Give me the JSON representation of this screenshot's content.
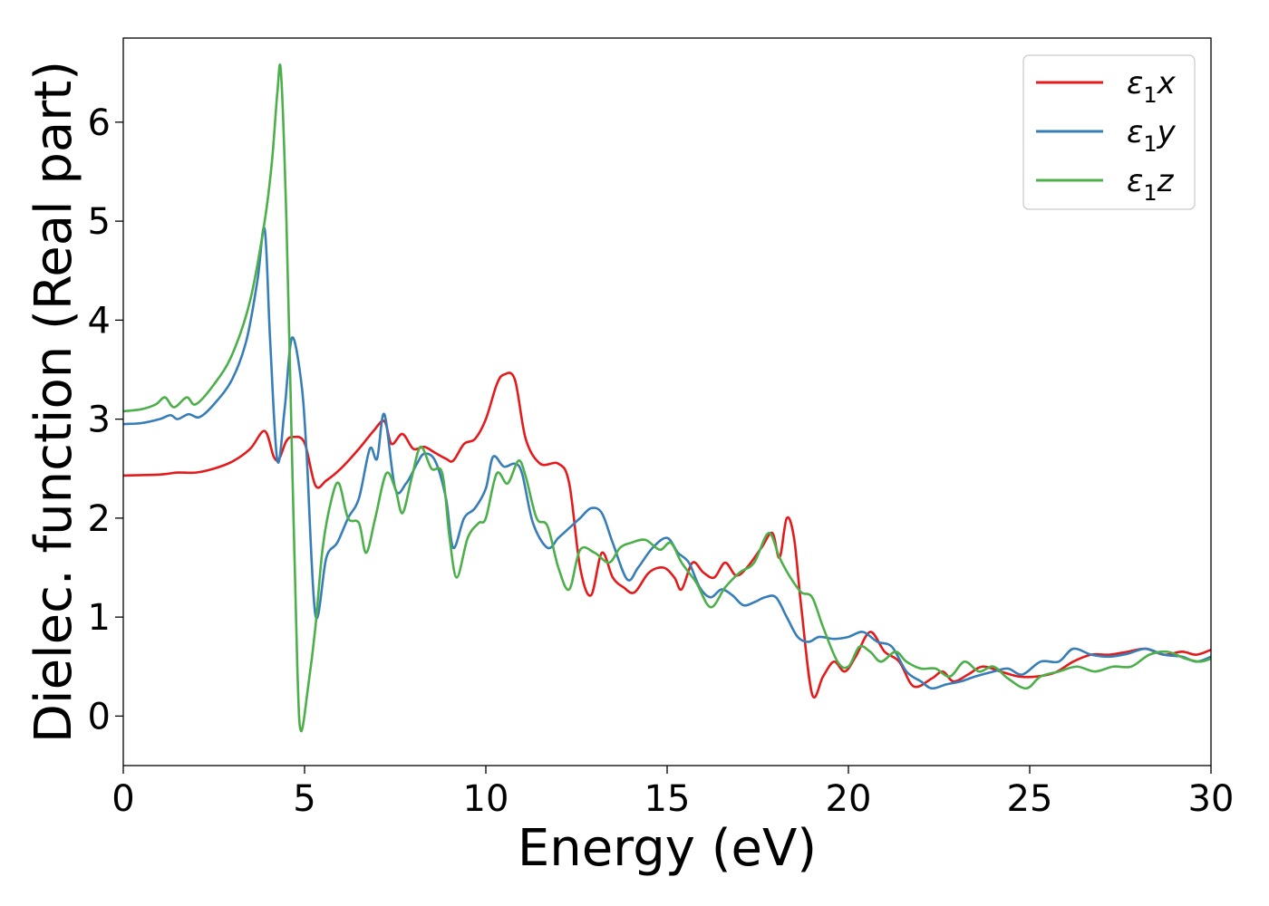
{
  "chart_data": {
    "type": "line",
    "title": "",
    "xlabel": "Energy (eV)",
    "ylabel": "Dielec. function (Real part)",
    "xlim": [
      0,
      30
    ],
    "ylim": [
      -0.5,
      6.85
    ],
    "xticks": [
      "0",
      "5",
      "10",
      "15",
      "20",
      "25",
      "30"
    ],
    "yticks": [
      "0",
      "1",
      "2",
      "3",
      "4",
      "5",
      "6"
    ],
    "grid": false,
    "legend_position": "top-right",
    "series": [
      {
        "name": "ε₁x",
        "legend_main": "ε",
        "legend_sub": "1",
        "legend_tail": "x",
        "color": "#e41a1c",
        "points": [
          [
            0,
            2.43
          ],
          [
            1,
            2.44
          ],
          [
            1.5,
            2.46
          ],
          [
            2,
            2.46
          ],
          [
            2.5,
            2.5
          ],
          [
            3,
            2.57
          ],
          [
            3.5,
            2.7
          ],
          [
            3.9,
            2.88
          ],
          [
            4.15,
            2.62
          ],
          [
            4.3,
            2.6
          ],
          [
            4.5,
            2.78
          ],
          [
            4.7,
            2.82
          ],
          [
            5.0,
            2.76
          ],
          [
            5.3,
            2.33
          ],
          [
            5.6,
            2.38
          ],
          [
            6.0,
            2.5
          ],
          [
            6.5,
            2.7
          ],
          [
            6.9,
            2.88
          ],
          [
            7.2,
            2.98
          ],
          [
            7.4,
            2.75
          ],
          [
            7.7,
            2.85
          ],
          [
            8.0,
            2.7
          ],
          [
            8.3,
            2.72
          ],
          [
            8.6,
            2.66
          ],
          [
            8.9,
            2.6
          ],
          [
            9.1,
            2.58
          ],
          [
            9.4,
            2.75
          ],
          [
            9.7,
            2.8
          ],
          [
            10.0,
            3.0
          ],
          [
            10.3,
            3.35
          ],
          [
            10.5,
            3.45
          ],
          [
            10.8,
            3.4
          ],
          [
            11.1,
            2.8
          ],
          [
            11.5,
            2.55
          ],
          [
            12.0,
            2.55
          ],
          [
            12.3,
            2.35
          ],
          [
            12.6,
            1.5
          ],
          [
            12.9,
            1.22
          ],
          [
            13.2,
            1.65
          ],
          [
            13.5,
            1.4
          ],
          [
            13.8,
            1.3
          ],
          [
            14.1,
            1.25
          ],
          [
            14.5,
            1.45
          ],
          [
            14.9,
            1.5
          ],
          [
            15.2,
            1.4
          ],
          [
            15.4,
            1.28
          ],
          [
            15.7,
            1.55
          ],
          [
            16.0,
            1.45
          ],
          [
            16.3,
            1.4
          ],
          [
            16.6,
            1.55
          ],
          [
            16.9,
            1.42
          ],
          [
            17.2,
            1.5
          ],
          [
            17.6,
            1.7
          ],
          [
            17.9,
            1.85
          ],
          [
            18.1,
            1.6
          ],
          [
            18.3,
            2.0
          ],
          [
            18.5,
            1.8
          ],
          [
            18.7,
            1.1
          ],
          [
            19.0,
            0.22
          ],
          [
            19.3,
            0.4
          ],
          [
            19.6,
            0.55
          ],
          [
            19.9,
            0.45
          ],
          [
            20.2,
            0.6
          ],
          [
            20.6,
            0.85
          ],
          [
            21.0,
            0.65
          ],
          [
            21.4,
            0.55
          ],
          [
            21.8,
            0.3
          ],
          [
            22.3,
            0.38
          ],
          [
            22.6,
            0.45
          ],
          [
            22.9,
            0.35
          ],
          [
            23.3,
            0.42
          ],
          [
            23.7,
            0.5
          ],
          [
            24.2,
            0.45
          ],
          [
            24.7,
            0.4
          ],
          [
            25.2,
            0.4
          ],
          [
            25.7,
            0.44
          ],
          [
            26.2,
            0.55
          ],
          [
            26.7,
            0.62
          ],
          [
            27.2,
            0.62
          ],
          [
            27.7,
            0.65
          ],
          [
            28.2,
            0.68
          ],
          [
            28.7,
            0.62
          ],
          [
            29.2,
            0.65
          ],
          [
            29.6,
            0.62
          ],
          [
            30.0,
            0.67
          ]
        ]
      },
      {
        "name": "ε₁y",
        "legend_main": "ε",
        "legend_sub": "1",
        "legend_tail": "y",
        "color": "#377eb8",
        "points": [
          [
            0,
            2.95
          ],
          [
            0.5,
            2.96
          ],
          [
            1.0,
            3.0
          ],
          [
            1.3,
            3.04
          ],
          [
            1.5,
            3.0
          ],
          [
            1.8,
            3.05
          ],
          [
            2.1,
            3.02
          ],
          [
            2.5,
            3.15
          ],
          [
            3.0,
            3.4
          ],
          [
            3.4,
            3.8
          ],
          [
            3.7,
            4.4
          ],
          [
            3.9,
            4.92
          ],
          [
            4.05,
            3.8
          ],
          [
            4.25,
            2.58
          ],
          [
            4.45,
            3.1
          ],
          [
            4.65,
            3.82
          ],
          [
            4.9,
            3.4
          ],
          [
            5.05,
            2.7
          ],
          [
            5.3,
            1.02
          ],
          [
            5.6,
            1.6
          ],
          [
            5.9,
            1.75
          ],
          [
            6.2,
            2.0
          ],
          [
            6.5,
            2.2
          ],
          [
            6.8,
            2.7
          ],
          [
            7.0,
            2.6
          ],
          [
            7.2,
            3.05
          ],
          [
            7.5,
            2.3
          ],
          [
            7.8,
            2.35
          ],
          [
            8.1,
            2.55
          ],
          [
            8.3,
            2.65
          ],
          [
            8.6,
            2.58
          ],
          [
            8.9,
            2.2
          ],
          [
            9.1,
            1.7
          ],
          [
            9.4,
            2.0
          ],
          [
            9.7,
            2.1
          ],
          [
            10.0,
            2.3
          ],
          [
            10.2,
            2.62
          ],
          [
            10.5,
            2.52
          ],
          [
            10.8,
            2.55
          ],
          [
            11.0,
            2.45
          ],
          [
            11.3,
            1.95
          ],
          [
            11.7,
            1.7
          ],
          [
            12.0,
            1.8
          ],
          [
            12.3,
            1.9
          ],
          [
            12.6,
            2.0
          ],
          [
            12.9,
            2.1
          ],
          [
            13.2,
            2.05
          ],
          [
            13.5,
            1.75
          ],
          [
            13.9,
            1.38
          ],
          [
            14.2,
            1.5
          ],
          [
            14.6,
            1.7
          ],
          [
            15.0,
            1.8
          ],
          [
            15.3,
            1.65
          ],
          [
            15.6,
            1.55
          ],
          [
            15.9,
            1.3
          ],
          [
            16.2,
            1.2
          ],
          [
            16.5,
            1.28
          ],
          [
            16.8,
            1.22
          ],
          [
            17.1,
            1.12
          ],
          [
            17.4,
            1.15
          ],
          [
            17.7,
            1.2
          ],
          [
            18.0,
            1.2
          ],
          [
            18.3,
            1.0
          ],
          [
            18.6,
            0.8
          ],
          [
            18.9,
            0.75
          ],
          [
            19.2,
            0.8
          ],
          [
            19.6,
            0.78
          ],
          [
            20.0,
            0.8
          ],
          [
            20.4,
            0.85
          ],
          [
            20.8,
            0.75
          ],
          [
            21.2,
            0.7
          ],
          [
            21.6,
            0.45
          ],
          [
            22.0,
            0.35
          ],
          [
            22.3,
            0.28
          ],
          [
            22.7,
            0.32
          ],
          [
            23.1,
            0.35
          ],
          [
            23.5,
            0.4
          ],
          [
            24.0,
            0.45
          ],
          [
            24.4,
            0.48
          ],
          [
            24.8,
            0.42
          ],
          [
            25.3,
            0.55
          ],
          [
            25.8,
            0.55
          ],
          [
            26.2,
            0.68
          ],
          [
            26.7,
            0.62
          ],
          [
            27.2,
            0.6
          ],
          [
            27.7,
            0.63
          ],
          [
            28.2,
            0.68
          ],
          [
            28.7,
            0.62
          ],
          [
            29.2,
            0.6
          ],
          [
            29.6,
            0.55
          ],
          [
            30.0,
            0.6
          ]
        ]
      },
      {
        "name": "ε₁z",
        "legend_main": "ε",
        "legend_sub": "1",
        "legend_tail": "z",
        "color": "#4daf4a",
        "points": [
          [
            0,
            3.08
          ],
          [
            0.5,
            3.1
          ],
          [
            0.9,
            3.15
          ],
          [
            1.15,
            3.22
          ],
          [
            1.4,
            3.12
          ],
          [
            1.75,
            3.22
          ],
          [
            2.0,
            3.15
          ],
          [
            2.5,
            3.35
          ],
          [
            3.0,
            3.65
          ],
          [
            3.5,
            4.2
          ],
          [
            3.9,
            5.0
          ],
          [
            4.1,
            5.6
          ],
          [
            4.25,
            6.3
          ],
          [
            4.35,
            6.5
          ],
          [
            4.5,
            5.0
          ],
          [
            4.65,
            2.7
          ],
          [
            4.8,
            0.5
          ],
          [
            4.9,
            -0.15
          ],
          [
            5.1,
            0.3
          ],
          [
            5.3,
            0.9
          ],
          [
            5.5,
            1.7
          ],
          [
            5.75,
            2.2
          ],
          [
            5.95,
            2.35
          ],
          [
            6.2,
            2.0
          ],
          [
            6.5,
            1.95
          ],
          [
            6.7,
            1.65
          ],
          [
            6.95,
            2.0
          ],
          [
            7.25,
            2.45
          ],
          [
            7.5,
            2.3
          ],
          [
            7.7,
            2.05
          ],
          [
            7.95,
            2.4
          ],
          [
            8.2,
            2.72
          ],
          [
            8.5,
            2.5
          ],
          [
            8.8,
            2.45
          ],
          [
            9.0,
            1.8
          ],
          [
            9.2,
            1.4
          ],
          [
            9.5,
            1.8
          ],
          [
            9.8,
            1.95
          ],
          [
            10.0,
            2.0
          ],
          [
            10.3,
            2.45
          ],
          [
            10.6,
            2.35
          ],
          [
            10.9,
            2.58
          ],
          [
            11.1,
            2.42
          ],
          [
            11.4,
            2.0
          ],
          [
            11.7,
            1.92
          ],
          [
            12.0,
            1.5
          ],
          [
            12.3,
            1.28
          ],
          [
            12.6,
            1.68
          ],
          [
            13.0,
            1.65
          ],
          [
            13.4,
            1.55
          ],
          [
            13.7,
            1.7
          ],
          [
            14.0,
            1.75
          ],
          [
            14.4,
            1.78
          ],
          [
            14.8,
            1.68
          ],
          [
            15.1,
            1.75
          ],
          [
            15.4,
            1.55
          ],
          [
            15.8,
            1.35
          ],
          [
            16.2,
            1.1
          ],
          [
            16.6,
            1.3
          ],
          [
            17.0,
            1.45
          ],
          [
            17.4,
            1.55
          ],
          [
            17.8,
            1.85
          ],
          [
            18.1,
            1.6
          ],
          [
            18.4,
            1.4
          ],
          [
            18.7,
            1.25
          ],
          [
            19.0,
            1.2
          ],
          [
            19.3,
            0.9
          ],
          [
            19.7,
            0.55
          ],
          [
            20.0,
            0.5
          ],
          [
            20.3,
            0.7
          ],
          [
            20.6,
            0.65
          ],
          [
            20.9,
            0.55
          ],
          [
            21.3,
            0.65
          ],
          [
            21.6,
            0.55
          ],
          [
            22.0,
            0.48
          ],
          [
            22.4,
            0.48
          ],
          [
            22.8,
            0.4
          ],
          [
            23.2,
            0.55
          ],
          [
            23.6,
            0.45
          ],
          [
            24.0,
            0.5
          ],
          [
            24.4,
            0.38
          ],
          [
            24.9,
            0.28
          ],
          [
            25.3,
            0.4
          ],
          [
            25.8,
            0.45
          ],
          [
            26.3,
            0.5
          ],
          [
            26.8,
            0.45
          ],
          [
            27.3,
            0.5
          ],
          [
            27.8,
            0.5
          ],
          [
            28.3,
            0.62
          ],
          [
            28.8,
            0.65
          ],
          [
            29.3,
            0.58
          ],
          [
            29.7,
            0.55
          ],
          [
            30.0,
            0.58
          ]
        ]
      }
    ]
  }
}
